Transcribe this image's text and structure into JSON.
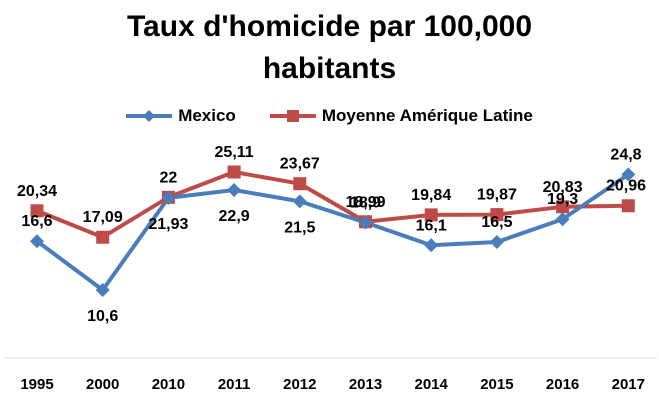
{
  "chart_data": {
    "type": "line",
    "title_lines": [
      "Taux d'homicide par 100,000",
      "habitants"
    ],
    "categories": [
      "1995",
      "2000",
      "2010",
      "2011",
      "2012",
      "2013",
      "2014",
      "2015",
      "2016",
      "2017"
    ],
    "series": [
      {
        "name": "Mexico",
        "color": "#4a7ebb",
        "marker": "diamond",
        "values": [
          16.6,
          10.6,
          21.93,
          22.9,
          21.5,
          18.9,
          16.1,
          16.5,
          19.3,
          24.8
        ],
        "labels": [
          "16,6",
          "10,6",
          "21,93",
          "22,9",
          "21,5",
          "18,9",
          "16,1",
          "16,5",
          "19,3",
          "24,8"
        ],
        "label_positions": [
          "above",
          "below",
          "below",
          "below",
          "below",
          "above",
          "above",
          "above",
          "above",
          "above"
        ]
      },
      {
        "name": "Moyenne Amérique Latine",
        "color": "#be4b48",
        "marker": "square",
        "values": [
          20.34,
          17.09,
          22,
          25.11,
          23.67,
          18.99,
          19.84,
          19.87,
          20.83,
          20.96
        ],
        "labels": [
          "20,34",
          "17,09",
          "22",
          "25,11",
          "23,67",
          "18,99",
          "19,84",
          "19,87",
          "20,83",
          "20,96"
        ],
        "label_positions": [
          "above",
          "above",
          "above",
          "above",
          "above",
          "above",
          "above",
          "above",
          "above",
          "above"
        ]
      }
    ],
    "legend_position": "top",
    "grid": false,
    "y_axis_visible": false,
    "ylim": [
      7,
      30
    ]
  }
}
